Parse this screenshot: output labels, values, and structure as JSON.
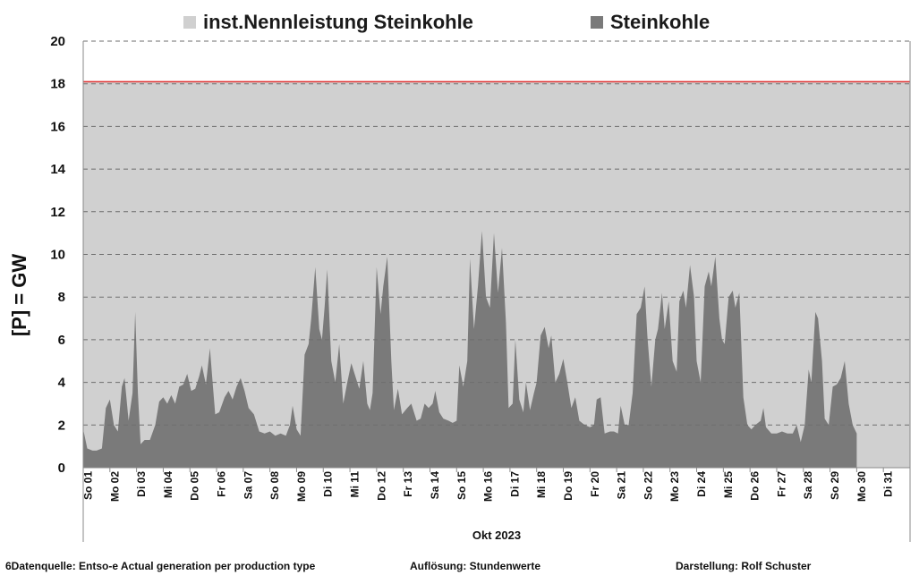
{
  "chart_data": {
    "type": "area",
    "legend": [
      {
        "label": "inst.Nennleistung Steinkohle",
        "color": "#d0d0d0"
      },
      {
        "label": "Steinkohle",
        "color": "#7a7a7a"
      }
    ],
    "ylabel": "[P]  =  GW",
    "xlabel": "Okt 2023",
    "ylim": [
      0,
      20
    ],
    "yticks": [
      "0",
      "2",
      "4",
      "6",
      "8",
      "10",
      "12",
      "14",
      "16",
      "18",
      "20"
    ],
    "day_labels": [
      "So 01",
      "Mo 02",
      "Di 03",
      "Mi 04",
      "Do 05",
      "Fr 06",
      "Sa 07",
      "So 08",
      "Mo 09",
      "Di 10",
      "Mi 11",
      "Do 12",
      "Fr 13",
      "Sa 14",
      "So 15",
      "Mo 16",
      "Di 17",
      "Mi 18",
      "Do 19",
      "Fr 20",
      "Sa 21",
      "So 22",
      "Mo 23",
      "Di 24",
      "Mi 25",
      "Do 26",
      "Fr 27",
      "Sa 28",
      "So 29",
      "Mo 30",
      "Di 31"
    ],
    "grid": "dashed horizontal",
    "capacity_gw": 18.1,
    "capacity_line_color": "#e03030",
    "series": [
      {
        "name": "Steinkohle",
        "x_unit": "days since 01 Oct 2023 00:00",
        "points": [
          [
            0,
            1.8
          ],
          [
            0.15,
            0.9
          ],
          [
            0.35,
            0.8
          ],
          [
            0.5,
            0.8
          ],
          [
            0.7,
            0.9
          ],
          [
            0.85,
            2.8
          ],
          [
            1.0,
            3.2
          ],
          [
            1.15,
            2.0
          ],
          [
            1.3,
            1.7
          ],
          [
            1.45,
            3.8
          ],
          [
            1.55,
            4.2
          ],
          [
            1.7,
            2.2
          ],
          [
            1.85,
            3.5
          ],
          [
            1.95,
            7.3
          ],
          [
            2.05,
            3.5
          ],
          [
            2.15,
            1.1
          ],
          [
            2.3,
            1.3
          ],
          [
            2.5,
            1.3
          ],
          [
            2.7,
            2.0
          ],
          [
            2.85,
            3.1
          ],
          [
            3.0,
            3.3
          ],
          [
            3.15,
            3.0
          ],
          [
            3.3,
            3.4
          ],
          [
            3.45,
            3.0
          ],
          [
            3.6,
            3.8
          ],
          [
            3.75,
            3.9
          ],
          [
            3.9,
            4.4
          ],
          [
            4.05,
            3.6
          ],
          [
            4.2,
            3.7
          ],
          [
            4.35,
            4.3
          ],
          [
            4.45,
            4.8
          ],
          [
            4.6,
            3.9
          ],
          [
            4.75,
            5.6
          ],
          [
            4.85,
            4.0
          ],
          [
            4.95,
            2.5
          ],
          [
            5.1,
            2.6
          ],
          [
            5.3,
            3.3
          ],
          [
            5.45,
            3.6
          ],
          [
            5.6,
            3.2
          ],
          [
            5.75,
            3.8
          ],
          [
            5.9,
            4.2
          ],
          [
            6.05,
            3.6
          ],
          [
            6.2,
            2.8
          ],
          [
            6.4,
            2.5
          ],
          [
            6.6,
            1.7
          ],
          [
            6.8,
            1.6
          ],
          [
            7.0,
            1.7
          ],
          [
            7.2,
            1.5
          ],
          [
            7.4,
            1.6
          ],
          [
            7.6,
            1.5
          ],
          [
            7.75,
            2.0
          ],
          [
            7.85,
            2.9
          ],
          [
            8.0,
            1.8
          ],
          [
            8.15,
            1.5
          ],
          [
            8.3,
            5.3
          ],
          [
            8.45,
            5.8
          ],
          [
            8.55,
            7.0
          ],
          [
            8.7,
            9.4
          ],
          [
            8.85,
            6.5
          ],
          [
            8.95,
            6.0
          ],
          [
            9.05,
            7.5
          ],
          [
            9.15,
            9.3
          ],
          [
            9.3,
            5.0
          ],
          [
            9.45,
            4.0
          ],
          [
            9.6,
            5.8
          ],
          [
            9.75,
            3.0
          ],
          [
            9.9,
            4.0
          ],
          [
            10.05,
            4.9
          ],
          [
            10.2,
            4.3
          ],
          [
            10.35,
            3.7
          ],
          [
            10.5,
            5.0
          ],
          [
            10.65,
            3.0
          ],
          [
            10.75,
            2.7
          ],
          [
            10.85,
            3.5
          ],
          [
            11.0,
            9.4
          ],
          [
            11.15,
            7.2
          ],
          [
            11.25,
            8.5
          ],
          [
            11.4,
            9.9
          ],
          [
            11.55,
            5.0
          ],
          [
            11.65,
            2.7
          ],
          [
            11.8,
            3.7
          ],
          [
            11.95,
            2.5
          ],
          [
            12.15,
            2.8
          ],
          [
            12.3,
            3.0
          ],
          [
            12.5,
            2.2
          ],
          [
            12.65,
            2.3
          ],
          [
            12.8,
            3.0
          ],
          [
            12.95,
            2.8
          ],
          [
            13.1,
            3.0
          ],
          [
            13.2,
            3.6
          ],
          [
            13.35,
            2.6
          ],
          [
            13.5,
            2.3
          ],
          [
            13.7,
            2.2
          ],
          [
            13.85,
            2.1
          ],
          [
            14.0,
            2.2
          ],
          [
            14.1,
            4.8
          ],
          [
            14.25,
            3.8
          ],
          [
            14.4,
            5.0
          ],
          [
            14.5,
            9.8
          ],
          [
            14.65,
            6.5
          ],
          [
            14.8,
            8.5
          ],
          [
            14.95,
            11.1
          ],
          [
            15.1,
            8.0
          ],
          [
            15.25,
            7.5
          ],
          [
            15.4,
            11.0
          ],
          [
            15.55,
            8.2
          ],
          [
            15.7,
            10.3
          ],
          [
            15.85,
            6.8
          ],
          [
            15.95,
            2.8
          ],
          [
            16.1,
            3.0
          ],
          [
            16.2,
            6.0
          ],
          [
            16.35,
            3.2
          ],
          [
            16.5,
            2.6
          ],
          [
            16.6,
            4.0
          ],
          [
            16.75,
            2.7
          ],
          [
            16.9,
            3.5
          ],
          [
            17.0,
            4.0
          ],
          [
            17.15,
            6.2
          ],
          [
            17.3,
            6.6
          ],
          [
            17.45,
            5.6
          ],
          [
            17.55,
            6.2
          ],
          [
            17.7,
            4.0
          ],
          [
            17.85,
            4.4
          ],
          [
            18.0,
            5.1
          ],
          [
            18.15,
            4.0
          ],
          [
            18.3,
            2.8
          ],
          [
            18.45,
            3.3
          ],
          [
            18.6,
            2.2
          ],
          [
            18.8,
            2.0
          ],
          [
            19.0,
            1.9
          ],
          [
            19.15,
            2.0
          ],
          [
            19.25,
            3.2
          ],
          [
            19.4,
            3.3
          ],
          [
            19.55,
            1.6
          ],
          [
            19.75,
            1.7
          ],
          [
            19.9,
            1.7
          ],
          [
            20.05,
            1.6
          ],
          [
            20.15,
            2.9
          ],
          [
            20.3,
            2.0
          ],
          [
            20.45,
            2.0
          ],
          [
            20.6,
            3.5
          ],
          [
            20.75,
            7.2
          ],
          [
            20.9,
            7.5
          ],
          [
            21.05,
            8.5
          ],
          [
            21.15,
            6.2
          ],
          [
            21.3,
            3.8
          ],
          [
            21.45,
            6.0
          ],
          [
            21.55,
            6.5
          ],
          [
            21.7,
            8.2
          ],
          [
            21.8,
            6.5
          ],
          [
            21.95,
            7.8
          ],
          [
            22.1,
            5.0
          ],
          [
            22.25,
            4.5
          ],
          [
            22.35,
            7.8
          ],
          [
            22.5,
            8.3
          ],
          [
            22.6,
            7.5
          ],
          [
            22.75,
            9.5
          ],
          [
            22.9,
            8.0
          ],
          [
            23.0,
            5.0
          ],
          [
            23.15,
            4.0
          ],
          [
            23.3,
            8.5
          ],
          [
            23.45,
            9.2
          ],
          [
            23.55,
            8.5
          ],
          [
            23.7,
            9.9
          ],
          [
            23.85,
            7.0
          ],
          [
            23.95,
            6.0
          ],
          [
            24.05,
            5.8
          ],
          [
            24.2,
            8.0
          ],
          [
            24.35,
            8.3
          ],
          [
            24.45,
            7.5
          ],
          [
            24.6,
            8.2
          ],
          [
            24.75,
            3.3
          ],
          [
            24.9,
            2.0
          ],
          [
            25.05,
            1.8
          ],
          [
            25.2,
            2.0
          ],
          [
            25.4,
            2.2
          ],
          [
            25.5,
            2.8
          ],
          [
            25.6,
            1.9
          ],
          [
            25.8,
            1.6
          ],
          [
            26.0,
            1.6
          ],
          [
            26.2,
            1.7
          ],
          [
            26.4,
            1.6
          ],
          [
            26.6,
            1.6
          ],
          [
            26.75,
            2.0
          ],
          [
            26.9,
            1.2
          ],
          [
            27.05,
            2.0
          ],
          [
            27.2,
            4.6
          ],
          [
            27.3,
            4.0
          ],
          [
            27.45,
            7.3
          ],
          [
            27.55,
            7.0
          ],
          [
            27.7,
            5.0
          ],
          [
            27.8,
            2.3
          ],
          [
            27.95,
            2.0
          ],
          [
            28.1,
            3.8
          ],
          [
            28.25,
            3.9
          ],
          [
            28.4,
            4.2
          ],
          [
            28.55,
            5.0
          ],
          [
            28.7,
            3.0
          ],
          [
            28.85,
            2.0
          ],
          [
            29.0,
            1.6
          ]
        ]
      }
    ]
  },
  "footer": {
    "source": "6Datenquelle: Entso-e  Actual generation per production type",
    "resolution": "Auflösung:  Stundenwerte",
    "author": "Darstellung:  Rolf Schuster"
  }
}
